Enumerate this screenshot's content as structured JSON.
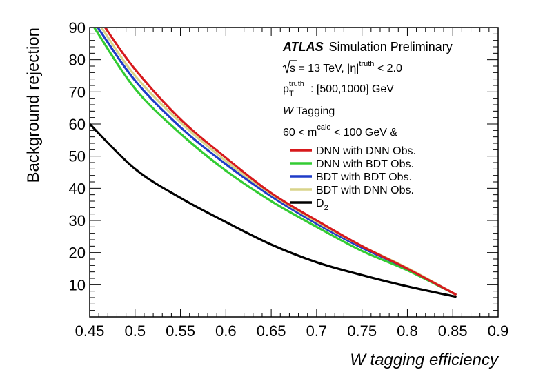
{
  "chart_data": {
    "type": "line",
    "xlabel": "W tagging efficiency",
    "ylabel": "Background rejection",
    "xlim": [
      0.45,
      0.9
    ],
    "ylim": [
      0,
      90
    ],
    "xticks": [
      "0.45",
      "0.5",
      "0.55",
      "0.6",
      "0.65",
      "0.7",
      "0.75",
      "0.8",
      "0.85",
      "0.9"
    ],
    "yticks": [
      "10",
      "20",
      "30",
      "40",
      "50",
      "60",
      "70",
      "80",
      "90"
    ],
    "grid": false,
    "legend_position": "top-right",
    "annotations": {
      "atlas": "ATLAS",
      "atlas_suffix": "Simulation Preliminary",
      "sqrt_s": "s = 13 TeV, |η|",
      "sqrt_s_sup": "truth",
      "sqrt_s_tail": " < 2.0",
      "pt_main": "p",
      "pt_sup": "truth",
      "pt_sub": "T",
      "pt_tail": ": [500,1000] GeV",
      "w_symbol": "W",
      "w_text": " Tagging",
      "mass_head": "60 < m",
      "mass_sup": "calo",
      "mass_tail": " < 100 GeV &"
    },
    "series": [
      {
        "name": "DNN with DNN Obs.",
        "color": "#d7191c",
        "x": [
          0.467,
          0.5,
          0.55,
          0.6,
          0.65,
          0.7,
          0.75,
          0.8,
          0.853
        ],
        "y": [
          90,
          77,
          61.5,
          49.5,
          38.5,
          30,
          22,
          15,
          7
        ]
      },
      {
        "name": "DNN with BDT Obs.",
        "color": "#33cc33",
        "x": [
          0.455,
          0.5,
          0.55,
          0.6,
          0.65,
          0.7,
          0.75,
          0.8,
          0.853
        ],
        "y": [
          90,
          71,
          57,
          45.5,
          36,
          28,
          20.5,
          14.5,
          7
        ]
      },
      {
        "name": "BDT with BDT Obs.",
        "color": "#1f3cc8",
        "x": [
          0.459,
          0.5,
          0.55,
          0.6,
          0.65,
          0.7,
          0.75,
          0.8,
          0.853
        ],
        "y": [
          90,
          73.5,
          59,
          47.5,
          37.5,
          29,
          21.5,
          15,
          7
        ]
      },
      {
        "name": "BDT with DNN Obs.",
        "color": "#d8d48a",
        "x": [
          0.463,
          0.5,
          0.55,
          0.6,
          0.65,
          0.7,
          0.75,
          0.8,
          0.853
        ],
        "y": [
          90,
          75,
          60.5,
          48.5,
          38.2,
          29.6,
          22,
          15.2,
          7
        ]
      },
      {
        "name": "D",
        "name_sub": "2",
        "color": "#000000",
        "x": [
          0.45,
          0.5,
          0.55,
          0.6,
          0.65,
          0.7,
          0.75,
          0.8,
          0.853
        ],
        "y": [
          60,
          46,
          37,
          29.5,
          22.5,
          17,
          13,
          9.5,
          6.3
        ]
      }
    ]
  }
}
